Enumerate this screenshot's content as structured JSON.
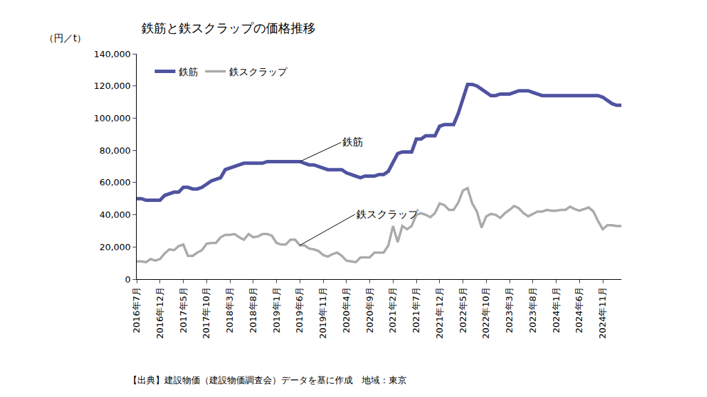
{
  "chart_data": {
    "type": "line",
    "title": "鉄筋と鉄スクラップの価格推移",
    "y_label": "（円／t）",
    "source": "【出典】建設物価（建設物価調査会）データを基に作成　地域：東京",
    "categories": [
      "2016年7月",
      null,
      null,
      null,
      null,
      "2016年12月",
      null,
      null,
      null,
      null,
      "2017年5月",
      null,
      null,
      null,
      null,
      "2017年10月",
      null,
      null,
      null,
      null,
      "2018年3月",
      null,
      null,
      null,
      null,
      "2018年8月",
      null,
      null,
      null,
      null,
      "2019年1月",
      null,
      null,
      null,
      null,
      "2019年6月",
      null,
      null,
      null,
      null,
      "2019年11月",
      null,
      null,
      null,
      null,
      "2020年4月",
      null,
      null,
      null,
      null,
      "2020年9月",
      null,
      null,
      null,
      null,
      "2021年2月",
      null,
      null,
      null,
      null,
      "2021年7月",
      null,
      null,
      null,
      null,
      "2021年12月",
      null,
      null,
      null,
      null,
      "2022年5月",
      null,
      null,
      null,
      null,
      "2022年10月",
      null,
      null,
      null,
      null,
      "2023年3月",
      null,
      null,
      null,
      null,
      "2023年8月",
      null,
      null,
      null,
      null,
      "2024年1月",
      null,
      null,
      null,
      null,
      "2024年6月",
      null,
      null,
      null,
      null,
      "2024年11月",
      null,
      null,
      null,
      null
    ],
    "series": [
      {
        "name": "鉄筋",
        "color": "#4f53a0",
        "line_style": "solid",
        "values": [
          50000,
          50000,
          49000,
          49000,
          49000,
          49000,
          52000,
          53000,
          54000,
          54000,
          57000,
          57000,
          56000,
          56000,
          57000,
          59000,
          61000,
          62000,
          63000,
          68000,
          69000,
          70000,
          71000,
          72000,
          72000,
          72000,
          72000,
          72000,
          73000,
          73000,
          73000,
          73000,
          73000,
          73000,
          73000,
          73000,
          72000,
          71000,
          71000,
          70000,
          69000,
          68000,
          68000,
          68000,
          68000,
          66000,
          65000,
          64000,
          63000,
          64000,
          64000,
          64000,
          65000,
          65000,
          67000,
          73000,
          78000,
          79000,
          79000,
          79000,
          87000,
          87000,
          89000,
          89000,
          89000,
          95000,
          96000,
          96000,
          96000,
          103000,
          112000,
          121000,
          121000,
          120000,
          118000,
          116000,
          114000,
          114000,
          115000,
          115000,
          115000,
          116000,
          117000,
          117000,
          117000,
          116000,
          115000,
          114000,
          114000,
          114000,
          114000,
          114000,
          114000,
          114000,
          114000,
          114000,
          114000,
          114000,
          114000,
          114000,
          113000,
          111000,
          109000,
          108000,
          108000
        ]
      },
      {
        "name": "鉄スクラップ",
        "color": "#aaaaaa",
        "line_style": "solid",
        "values": [
          11000,
          11000,
          10500,
          12500,
          11500,
          12500,
          16000,
          18500,
          18000,
          20500,
          21500,
          14500,
          14500,
          16500,
          18000,
          22000,
          22500,
          22500,
          26000,
          27500,
          27500,
          28000,
          26000,
          24500,
          28000,
          26000,
          26500,
          28000,
          28000,
          27000,
          22500,
          21500,
          21500,
          24500,
          24500,
          21000,
          21000,
          19000,
          18500,
          17500,
          15000,
          14000,
          15500,
          16500,
          14500,
          11500,
          11000,
          10500,
          13500,
          13500,
          13500,
          16500,
          16500,
          16500,
          21000,
          33000,
          23000,
          33000,
          31000,
          33000,
          40000,
          41000,
          40000,
          38500,
          41000,
          47000,
          46000,
          43000,
          43000,
          47500,
          55000,
          56500,
          47000,
          42000,
          32000,
          39000,
          40500,
          40000,
          38000,
          41000,
          43000,
          45500,
          44000,
          41000,
          39000,
          40500,
          42000,
          42000,
          43000,
          42500,
          42500,
          43000,
          43000,
          45000,
          43500,
          42500,
          43500,
          44500,
          42000,
          36000,
          31000,
          33500,
          33500,
          33000,
          33000
        ]
      }
    ],
    "annotations": [
      {
        "text": "鉄筋",
        "series": "鉄筋",
        "category": "2019年6月"
      },
      {
        "text": "鉄スクラップ",
        "series": "鉄スクラップ",
        "category": "2019年6月"
      }
    ],
    "ylim": [
      0,
      140000
    ],
    "yticks": [
      0,
      {
        "value": 20000,
        "label": "20,000"
      },
      {
        "value": 40000,
        "label": "40,000"
      },
      {
        "value": 60000,
        "label": "60,000"
      },
      {
        "value": 80000,
        "label": "80,000"
      },
      {
        "value": 100000,
        "label": "100,000"
      },
      {
        "value": 120000,
        "label": "120,000"
      },
      {
        "value": 140000,
        "label": "140,000"
      }
    ],
    "grid": false,
    "legend": "upper left"
  }
}
